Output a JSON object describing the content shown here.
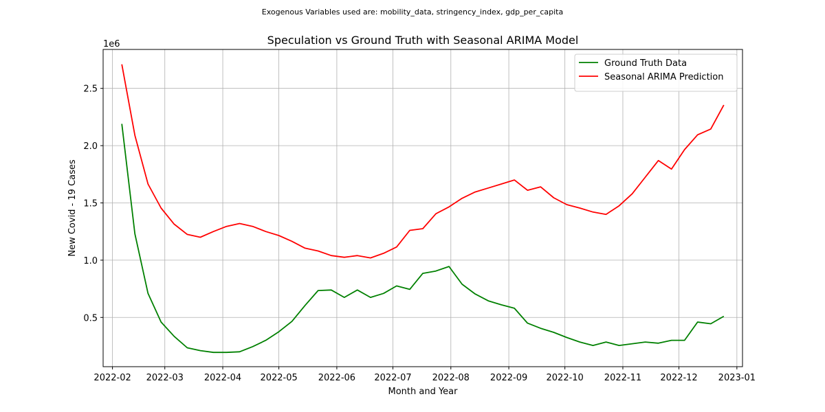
{
  "suptitle": "Exogenous Variables used are: mobility_data, stringency_index, gdp_per_capita",
  "chart_data": {
    "type": "line",
    "title": "Speculation vs Ground Truth with Seasonal ARIMA Model",
    "xlabel": "Month and Year",
    "ylabel": "New Covid - 19 Cases",
    "y_offset_label": "1e6",
    "xlim": [
      "2022-01-27",
      "2023-01-04"
    ],
    "ylim": [
      70000,
      2840000
    ],
    "x_ticks": [
      "2022-02-01",
      "2022-03-01",
      "2022-04-01",
      "2022-05-01",
      "2022-06-01",
      "2022-07-01",
      "2022-08-01",
      "2022-09-01",
      "2022-10-01",
      "2022-11-01",
      "2022-12-01",
      "2023-01-01"
    ],
    "x_tick_labels": [
      "2022-02",
      "2022-03",
      "2022-04",
      "2022-05",
      "2022-06",
      "2022-07",
      "2022-08",
      "2022-09",
      "2022-10",
      "2022-11",
      "2022-12",
      "2023-01"
    ],
    "y_ticks": [
      500000,
      1000000,
      1500000,
      2000000,
      2500000
    ],
    "y_tick_labels": [
      "0.5",
      "1.0",
      "1.5",
      "2.0",
      "2.5"
    ],
    "grid": true,
    "legend_position": "top-right",
    "x": [
      "2022-02-06",
      "2022-02-13",
      "2022-02-20",
      "2022-02-27",
      "2022-03-06",
      "2022-03-13",
      "2022-03-20",
      "2022-03-27",
      "2022-04-03",
      "2022-04-10",
      "2022-04-17",
      "2022-04-24",
      "2022-05-01",
      "2022-05-08",
      "2022-05-15",
      "2022-05-22",
      "2022-05-29",
      "2022-06-05",
      "2022-06-12",
      "2022-06-19",
      "2022-06-26",
      "2022-07-03",
      "2022-07-10",
      "2022-07-17",
      "2022-07-24",
      "2022-07-31",
      "2022-08-07",
      "2022-08-14",
      "2022-08-21",
      "2022-08-28",
      "2022-09-04",
      "2022-09-11",
      "2022-09-18",
      "2022-09-25",
      "2022-10-02",
      "2022-10-09",
      "2022-10-16",
      "2022-10-23",
      "2022-10-30",
      "2022-11-06",
      "2022-11-13",
      "2022-11-20",
      "2022-11-27",
      "2022-12-04",
      "2022-12-11",
      "2022-12-18",
      "2022-12-25"
    ],
    "series": [
      {
        "name": "Ground Truth Data",
        "color": "#008000",
        "values": [
          2190000,
          1230000,
          710000,
          460000,
          335000,
          235000,
          210000,
          195000,
          195000,
          200000,
          245000,
          300000,
          375000,
          465000,
          605000,
          735000,
          740000,
          675000,
          740000,
          675000,
          710000,
          775000,
          745000,
          885000,
          905000,
          945000,
          790000,
          705000,
          645000,
          610000,
          580000,
          450000,
          405000,
          370000,
          325000,
          285000,
          255000,
          285000,
          255000,
          270000,
          285000,
          275000,
          300000,
          300000,
          460000,
          445000,
          510000
        ]
      },
      {
        "name": "Seasonal ARIMA Prediction",
        "color": "#ff0000",
        "values": [
          2710000,
          2090000,
          1665000,
          1455000,
          1315000,
          1225000,
          1200000,
          1250000,
          1295000,
          1320000,
          1295000,
          1250000,
          1215000,
          1165000,
          1105000,
          1080000,
          1040000,
          1025000,
          1040000,
          1020000,
          1060000,
          1115000,
          1260000,
          1275000,
          1405000,
          1465000,
          1540000,
          1595000,
          1630000,
          1665000,
          1700000,
          1610000,
          1640000,
          1545000,
          1485000,
          1455000,
          1420000,
          1400000,
          1475000,
          1580000,
          1725000,
          1870000,
          1795000,
          1965000,
          2095000,
          2145000,
          2355000
        ]
      }
    ]
  }
}
